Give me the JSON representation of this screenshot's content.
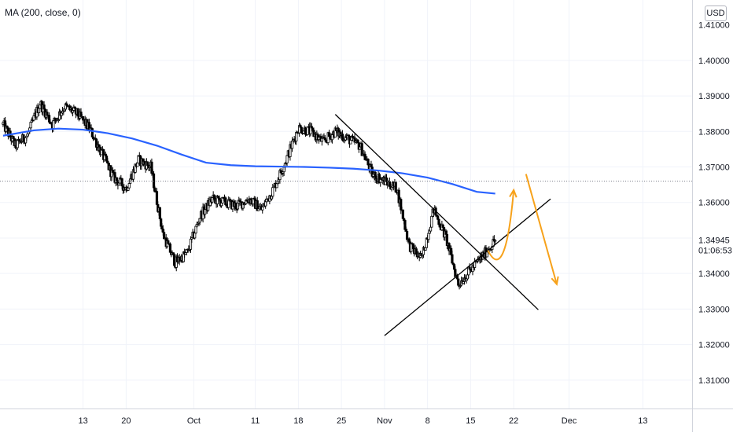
{
  "indicator": {
    "label": "MA (200, close, 0)"
  },
  "currency": "USD",
  "price_axis": {
    "current_price": "1.34945",
    "countdown": "01:06:53"
  },
  "colors": {
    "candle": "#000000",
    "ma_line": "#2962ff",
    "trendline": "#000000",
    "projection_arrow": "#f7a21b",
    "grid": "#f0f3fa",
    "axis_text": "#131722",
    "last_price_dotted": "#787b86"
  },
  "chart_data": {
    "type": "line",
    "title": "",
    "xlabel": "",
    "ylabel": "",
    "ylim": [
      1.302,
      1.417
    ],
    "y_ticks": [
      1.31,
      1.32,
      1.33,
      1.34,
      1.35,
      1.36,
      1.37,
      1.38,
      1.39,
      1.4
    ],
    "y_tick_labels": [
      "1.31000",
      "1.32000",
      "1.33000",
      "1.34000",
      "1.35000",
      "1.36000",
      "1.37000",
      "1.38000",
      "1.39000",
      "1.40000"
    ],
    "top_tick_label": "1.41000",
    "x_tick_labels": [
      "13",
      "20",
      "Oct",
      "11",
      "18",
      "25",
      "Nov",
      "8",
      "15",
      "22",
      "Dec",
      "13"
    ],
    "x_tick_days": [
      -18,
      -11,
      0,
      10,
      17,
      24,
      31,
      38,
      45,
      52,
      61,
      73
    ],
    "x_range_days": [
      -31.5,
      81
    ],
    "grid": true,
    "series": [
      {
        "name": "MA (200, close, 0)",
        "x": [
          -31,
          -26,
          -22,
          -18,
          -14,
          -10,
          -6,
          -2,
          2,
          6,
          10,
          14,
          18,
          22,
          26,
          30,
          34,
          38,
          42,
          46,
          49
        ],
        "values": [
          1.3788,
          1.3803,
          1.3808,
          1.3805,
          1.3795,
          1.378,
          1.376,
          1.3735,
          1.3712,
          1.3705,
          1.3702,
          1.3701,
          1.37,
          1.3698,
          1.3695,
          1.369,
          1.3682,
          1.367,
          1.3652,
          1.363,
          1.3625
        ]
      },
      {
        "name": "Close",
        "x": [
          -31,
          -29,
          -27,
          -25,
          -23,
          -21,
          -19,
          -17,
          -15,
          -13,
          -11,
          -9,
          -7,
          -5,
          -3,
          -1,
          1,
          3,
          5,
          7,
          9,
          11,
          13,
          15,
          17,
          19,
          21,
          23,
          25,
          27,
          29,
          31,
          33,
          35,
          37,
          39,
          41,
          43,
          45,
          47,
          49
        ],
        "values": [
          1.382,
          1.376,
          1.379,
          1.388,
          1.382,
          1.387,
          1.385,
          1.381,
          1.374,
          1.367,
          1.364,
          1.372,
          1.37,
          1.351,
          1.343,
          1.346,
          1.356,
          1.361,
          1.36,
          1.359,
          1.361,
          1.358,
          1.364,
          1.372,
          1.381,
          1.38,
          1.377,
          1.38,
          1.378,
          1.376,
          1.368,
          1.366,
          1.364,
          1.348,
          1.344,
          1.358,
          1.35,
          1.337,
          1.341,
          1.345,
          1.34945
        ]
      }
    ],
    "drawings": {
      "resistance_trendline": {
        "from": [
          23,
          1.3848
        ],
        "to": [
          56,
          1.3298
        ]
      },
      "support_trendline": {
        "from": [
          31,
          1.3225
        ],
        "to": [
          58,
          1.361
        ]
      },
      "projection_up": {
        "points": [
          [
            47.8,
            1.3465
          ],
          [
            49.5,
            1.3408
          ],
          [
            51,
            1.3438
          ],
          [
            52,
            1.3635
          ]
        ]
      },
      "projection_down": {
        "points": [
          [
            54,
            1.368
          ],
          [
            59,
            1.337
          ]
        ]
      }
    }
  }
}
